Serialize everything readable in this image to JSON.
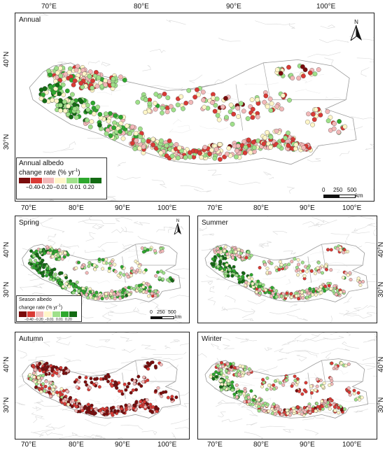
{
  "panels": [
    {
      "id": "annual",
      "title": "Annual",
      "bias": 0.0
    },
    {
      "id": "spring",
      "title": "Spring",
      "bias": 0.35
    },
    {
      "id": "summer",
      "title": "Summer",
      "bias": 0.15
    },
    {
      "id": "autumn",
      "title": "Autumn",
      "bias": -0.75
    },
    {
      "id": "winter",
      "title": "Winter",
      "bias": -0.1
    }
  ],
  "axes": {
    "lon_ticks": [
      "70°E",
      "80°E",
      "90°E",
      "100°E"
    ],
    "lat_ticks": [
      "40°N",
      "30°N"
    ]
  },
  "legend_annual": {
    "title_line1": "Annual albedo",
    "title_line2": "change rate (% yr",
    "title_sup": "-1",
    "title_close": ")",
    "labels": [
      "−0.40",
      "−0.20",
      "−0.01",
      "0.01",
      "0.20"
    ]
  },
  "legend_season": {
    "title_line1": "Season albedo",
    "title_line2": "change rate (% yr",
    "title_sup": "-1",
    "title_close": ")",
    "labels": [
      "−0.40",
      "−0.20",
      "−0.01",
      "0.01",
      "0.20"
    ]
  },
  "color_classes": [
    "#7a0c0c",
    "#d93a35",
    "#f2b8b8",
    "#fff6c8",
    "#9fe08a",
    "#2ea82e",
    "#136b13"
  ],
  "scale_bar": {
    "labels": [
      "0",
      "250",
      "500"
    ],
    "unit": "km"
  },
  "north_arrow": {
    "label": "N"
  }
}
